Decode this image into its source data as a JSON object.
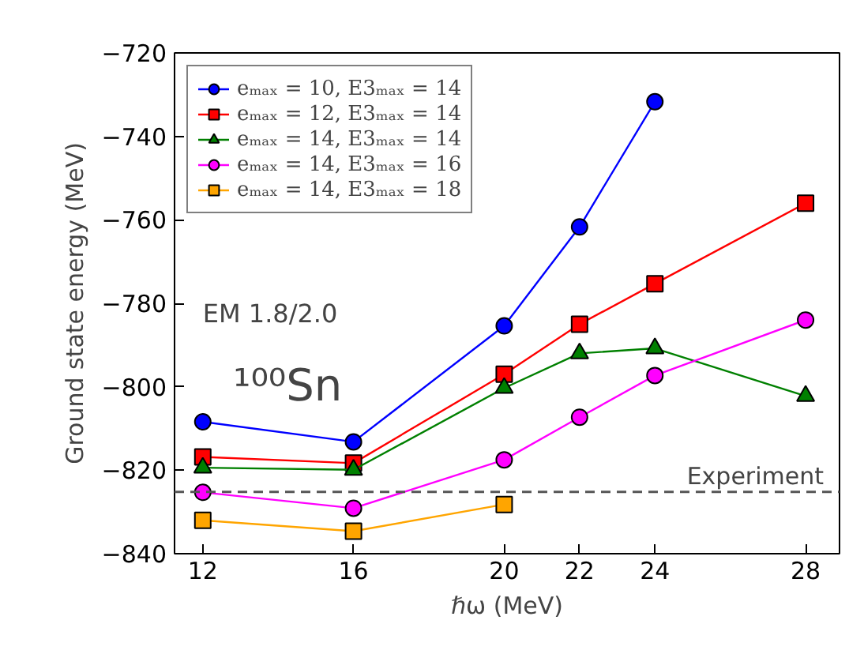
{
  "chart_data": {
    "type": "line",
    "xlabel": "ℏω (MeV)",
    "ylabel": "Ground state energy (MeV)",
    "x": [
      12,
      16,
      20,
      22,
      24,
      28
    ],
    "series": [
      {
        "name": "eₘₐₓ = 10, E3ₘₐₓ = 14",
        "color": "#0000ff",
        "marker": "circle",
        "values": [
          -808.4,
          -813.2,
          -785.4,
          -761.7,
          -731.7,
          null
        ]
      },
      {
        "name": "eₘₐₓ = 12, E3ₘₐₓ = 14",
        "color": "#ff0000",
        "marker": "square",
        "values": [
          -816.8,
          -818.3,
          -797,
          -785,
          -775.3,
          -756
        ]
      },
      {
        "name": "eₘₐₓ = 14, E3ₘₐₓ = 14",
        "color": "#008000",
        "marker": "triangle",
        "values": [
          -819.4,
          -819.9,
          -800.3,
          -792,
          -790.8,
          -802.2
        ]
      },
      {
        "name": "eₘₐₓ = 14, E3ₘₐₓ = 16",
        "color": "#ff00ff",
        "marker": "circle",
        "values": [
          -825.3,
          -829.1,
          -817.5,
          -807.3,
          -797.3,
          -784
        ]
      },
      {
        "name": "eₘₐₓ = 14, E3ₘₐₓ = 18",
        "color": "#ffa500",
        "marker": "square",
        "values": [
          -832,
          -834.6,
          -828.2,
          null,
          null,
          null
        ]
      }
    ],
    "xlim": [
      11.25,
      28.9
    ],
    "ylim": [
      -840,
      -720
    ],
    "xticks": [
      12,
      16,
      20,
      22,
      24,
      28
    ],
    "yticks": [
      -720,
      -740,
      -760,
      -780,
      -800,
      -820,
      -840
    ],
    "ref_lines": [
      {
        "axis": "y",
        "value": -825.2,
        "label": "Experiment",
        "color": "#555555",
        "line_style": "dashed"
      }
    ],
    "annotations": [
      "EM 1.8/2.0",
      "¹⁰⁰Sn"
    ],
    "legend": "top left",
    "grid": false
  }
}
